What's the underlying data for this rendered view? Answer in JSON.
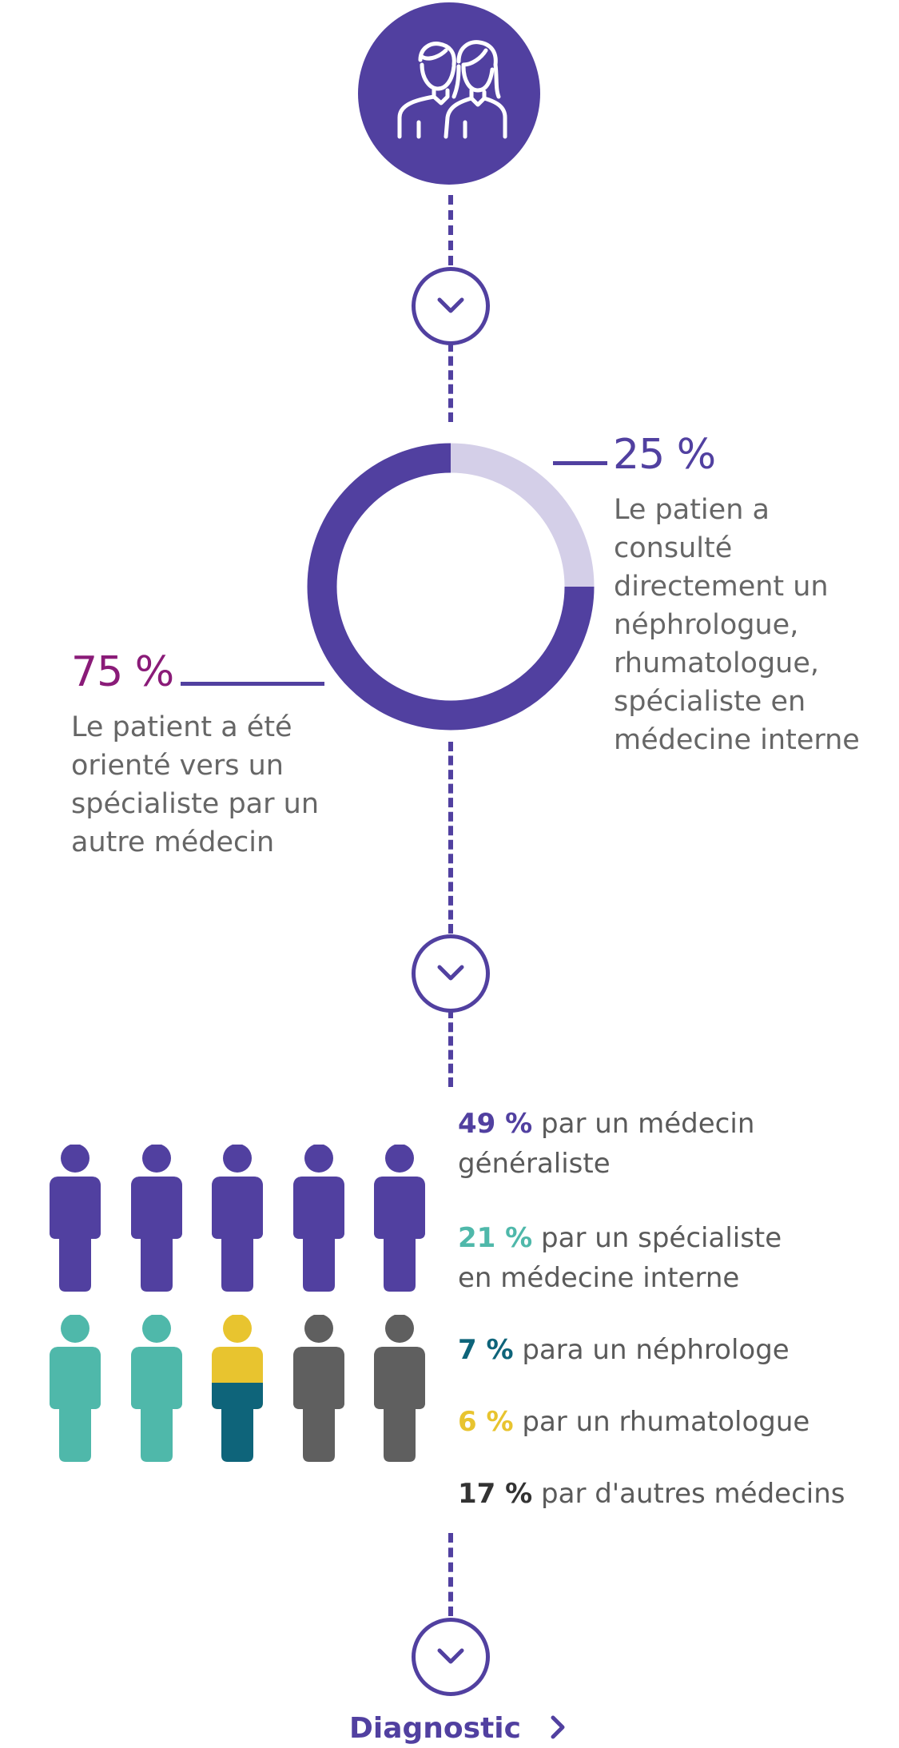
{
  "colors": {
    "primary": "#5140a0",
    "light_purple": "#d4cfe8",
    "magenta": "#8a1b78",
    "teal": "#4fb8aa",
    "dark_teal": "#0e647a",
    "yellow": "#e8c42f",
    "gray": "#5f5f5f"
  },
  "header_icon": "patients-icon",
  "chart_data": {
    "type": "pie",
    "labels": [
      "Le patient a été orienté vers un spécialiste par un autre médecin",
      "Le patien a consulté directement un néphrologue, rhumatologue, spécialiste en médecine interne"
    ],
    "values": [
      75,
      25
    ],
    "colors": [
      "#5140a0",
      "#d4cfe8"
    ]
  },
  "right_stat": {
    "value": "25 %",
    "description": "Le patien a consulté directement un néphrologue, rhumatologue, spécialiste en médecine interne"
  },
  "left_stat": {
    "value": "75 %",
    "description": "Le patient a été orienté vers un spécialiste par un autre médecin"
  },
  "referrals": [
    {
      "pct": "49 %",
      "text": " par un médecin généraliste",
      "color": "#5140a0"
    },
    {
      "pct": "21 %",
      "text": " par un spécialiste en médecine interne",
      "color": "#4fb8aa"
    },
    {
      "pct": "7 %",
      "text": " para un néphrologe",
      "color": "#0e647a"
    },
    {
      "pct": "6 %",
      "text": " par un rhumatologue",
      "color": "#e8c42f"
    },
    {
      "pct": "17 %",
      "text": " par d'autres médecins",
      "color": "#333333"
    }
  ],
  "cta": {
    "label": "Diagnostic"
  }
}
